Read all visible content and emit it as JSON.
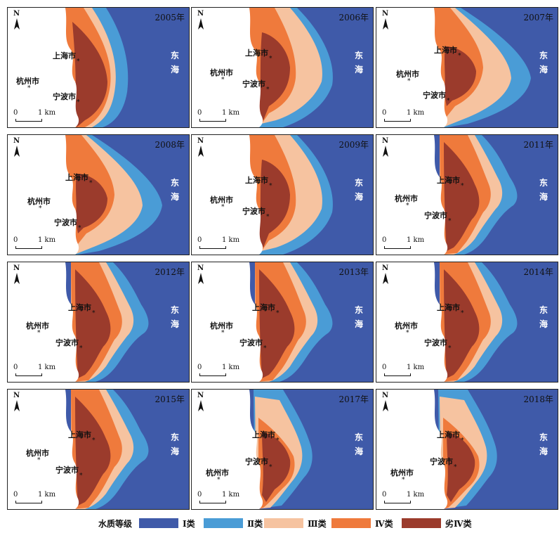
{
  "map": {
    "panels": [
      {
        "year": "2005年",
        "sea": [
          "东",
          "海"
        ],
        "shanghai": "上海市",
        "hangzhou": "杭州市",
        "ningbo": "宁波市",
        "north": "N",
        "scale_0": "0",
        "scale_1": "1 km",
        "variant": "a"
      },
      {
        "year": "2006年",
        "sea": [
          "东",
          "海"
        ],
        "shanghai": "上海市",
        "hangzhou": "杭州市",
        "ningbo": "宁波市",
        "north": "N",
        "scale_0": "0",
        "scale_1": "1 km",
        "variant": "b"
      },
      {
        "year": "2007年",
        "sea": [
          "东",
          "海"
        ],
        "shanghai": "上海市",
        "hangzhou": "杭州市",
        "ningbo": "宁波市",
        "north": "N",
        "scale_0": "0",
        "scale_1": "1 km",
        "variant": "c"
      },
      {
        "year": "2008年",
        "sea": [
          "东",
          "海"
        ],
        "shanghai": "上海市",
        "hangzhou": "杭州市",
        "ningbo": "宁波市",
        "north": "N",
        "scale_0": "0",
        "scale_1": "1 km",
        "variant": "c"
      },
      {
        "year": "2009年",
        "sea": [
          "东",
          "海"
        ],
        "shanghai": "上海市",
        "hangzhou": "杭州市",
        "ningbo": "宁波市",
        "north": "N",
        "scale_0": "0",
        "scale_1": "1 km",
        "variant": "b"
      },
      {
        "year": "2011年",
        "sea": [
          "东",
          "海"
        ],
        "shanghai": "上海市",
        "hangzhou": "杭州市",
        "ningbo": "宁波市",
        "north": "N",
        "scale_0": "0",
        "scale_1": "1 km",
        "variant": "d"
      },
      {
        "year": "2012年",
        "sea": [
          "东",
          "海"
        ],
        "shanghai": "上海市",
        "hangzhou": "杭州市",
        "ningbo": "宁波市",
        "north": "N",
        "scale_0": "0",
        "scale_1": "1 km",
        "variant": "d"
      },
      {
        "year": "2013年",
        "sea": [
          "东",
          "海"
        ],
        "shanghai": "上海市",
        "hangzhou": "杭州市",
        "ningbo": "宁波市",
        "north": "N",
        "scale_0": "0",
        "scale_1": "1 km",
        "variant": "d"
      },
      {
        "year": "2014年",
        "sea": [
          "东",
          "海"
        ],
        "shanghai": "上海市",
        "hangzhou": "杭州市",
        "ningbo": "宁波市",
        "north": "N",
        "scale_0": "0",
        "scale_1": "1 km",
        "variant": "d"
      },
      {
        "year": "2015年",
        "sea": [
          "东",
          "海"
        ],
        "shanghai": "上海市",
        "hangzhou": "杭州市",
        "ningbo": "宁波市",
        "north": "N",
        "scale_0": "0",
        "scale_1": "1 km",
        "variant": "d"
      },
      {
        "year": "2017年",
        "sea": [
          "东",
          "海"
        ],
        "shanghai": "上海市",
        "hangzhou": "杭州市",
        "ningbo": "宁波市",
        "north": "N",
        "scale_0": "0",
        "scale_1": "1 km",
        "variant": "e"
      },
      {
        "year": "2018年",
        "sea": [
          "东",
          "海"
        ],
        "shanghai": "上海市",
        "hangzhou": "杭州市",
        "ningbo": "宁波市",
        "north": "N",
        "scale_0": "0",
        "scale_1": "1 km",
        "variant": "e"
      }
    ],
    "legend": {
      "title": "水质等级",
      "items": [
        {
          "label": "Ⅰ类",
          "color": "#3f5aa9"
        },
        {
          "label": "Ⅱ类",
          "color": "#4a9cd6"
        },
        {
          "label": "Ⅲ类",
          "color": "#f6c3a0"
        },
        {
          "label": "Ⅳ类",
          "color": "#ef7a3c"
        },
        {
          "label": "劣Ⅳ类",
          "color": "#9b3b2c"
        }
      ]
    },
    "colors": {
      "land": "#ffffff",
      "class1": "#3f5aa9",
      "class2": "#4a9cd6",
      "class3": "#f6c3a0",
      "class4": "#ef7a3c",
      "class5": "#9b3b2c"
    }
  }
}
